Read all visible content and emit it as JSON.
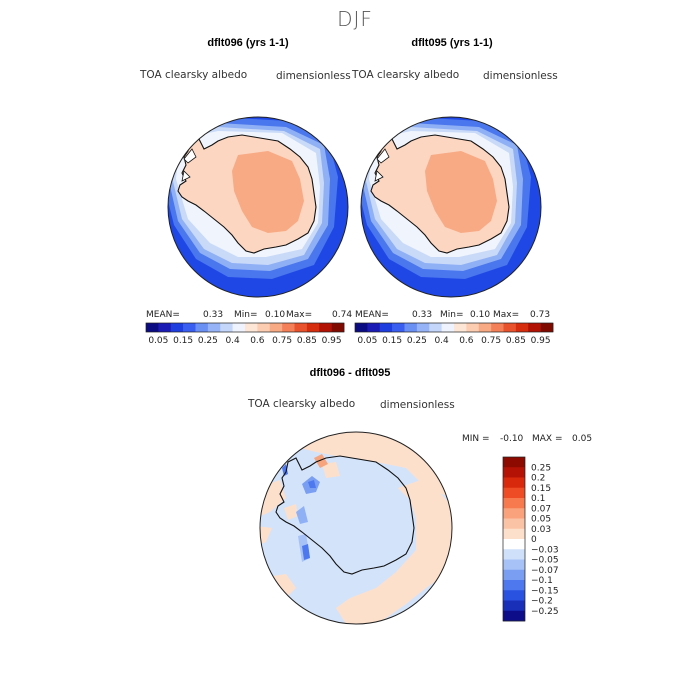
{
  "page": {
    "title": "DJF"
  },
  "colors": {
    "ocean_high": "#1f47e6",
    "ocean_mid": "#4a76ee",
    "ocean_low": "#8fb0f5",
    "ocean_pale": "#c9daf8",
    "ice_edge": "#f0f5fd",
    "land_low": "#fcd6c1",
    "land_high": "#f8aa84",
    "diff_bg": "#d3e3fa",
    "diff_pos": "#fde0cc",
    "diff_pos2": "#f5a47d",
    "diff_neg": "#4e78ee",
    "coast": "#111111"
  },
  "panels": [
    {
      "id": "dflt096",
      "title": "dflt096 (yrs 1-1)",
      "field": "TOA clearsky albedo",
      "units": "dimensionless",
      "mean_label": "MEAN=",
      "mean": "0.33",
      "min_label": "Min=",
      "min": "0.10",
      "max_label": "Max=",
      "max": "0.74"
    },
    {
      "id": "dflt095",
      "title": "dflt095 (yrs 1-1)",
      "field": "TOA clearsky albedo",
      "units": "dimensionless",
      "mean_label": "MEAN=",
      "mean": "0.33",
      "min_label": "Min=",
      "min": "0.10",
      "max_label": "Max=",
      "max": "0.73"
    }
  ],
  "diff_panel": {
    "title": "dflt096 - dflt095",
    "field": "TOA clearsky albedo",
    "units": "dimensionless",
    "min_label": "MIN =",
    "min": "-0.10",
    "max_label": "MAX =",
    "max": "0.05"
  },
  "chart_data": [
    {
      "type": "heatmap",
      "projection": "south polar stereographic",
      "title": "dflt096 (yrs 1-1)",
      "variable": "TOA clearsky albedo",
      "units": "dimensionless",
      "stats": {
        "mean": 0.33,
        "min": 0.1,
        "max": 0.74
      },
      "colorbar": {
        "tick_labels": [
          "0.05",
          "0.15",
          "0.25",
          "0.4",
          "0.6",
          "0.75",
          "0.85",
          "0.95"
        ],
        "colors": [
          "#0b0b82",
          "#1a1ab4",
          "#1f3ee0",
          "#3a5ef0",
          "#6b90f4",
          "#97b3f7",
          "#c4d6fa",
          "#eef3fd",
          "#fde6d6",
          "#fccdb1",
          "#f8aa84",
          "#f38058",
          "#e8532e",
          "#d62d0f",
          "#b11204",
          "#7e0a00"
        ]
      }
    },
    {
      "type": "heatmap",
      "projection": "south polar stereographic",
      "title": "dflt095 (yrs 1-1)",
      "variable": "TOA clearsky albedo",
      "units": "dimensionless",
      "stats": {
        "mean": 0.33,
        "min": 0.1,
        "max": 0.73
      },
      "colorbar": {
        "tick_labels": [
          "0.05",
          "0.15",
          "0.25",
          "0.4",
          "0.6",
          "0.75",
          "0.85",
          "0.95"
        ],
        "colors": [
          "#0b0b82",
          "#1a1ab4",
          "#1f3ee0",
          "#3a5ef0",
          "#6b90f4",
          "#97b3f7",
          "#c4d6fa",
          "#eef3fd",
          "#fde6d6",
          "#fccdb1",
          "#f8aa84",
          "#f38058",
          "#e8532e",
          "#d62d0f",
          "#b11204",
          "#7e0a00"
        ]
      }
    },
    {
      "type": "heatmap",
      "projection": "south polar stereographic",
      "title": "dflt096 - dflt095",
      "variable": "TOA clearsky albedo",
      "units": "dimensionless",
      "stats": {
        "min": -0.1,
        "max": 0.05
      },
      "colorbar": {
        "orientation": "vertical",
        "tick_labels": [
          "0.25",
          "0.2",
          "0.15",
          "0.1",
          "0.07",
          "0.05",
          "0.03",
          "0",
          "−0.03",
          "−0.05",
          "−0.07",
          "−0.1",
          "−0.15",
          "−0.2",
          "−0.25"
        ],
        "colors": [
          "#8c0a00",
          "#b31204",
          "#d8290c",
          "#ee4c24",
          "#f67a4d",
          "#f9a27c",
          "#fbc3a5",
          "#fde0cc",
          "#ffffff",
          "#cfe0fa",
          "#a7c2f6",
          "#7a9ef2",
          "#4e78ee",
          "#2a52e0",
          "#1a2fb8",
          "#0d0d8a"
        ]
      }
    }
  ]
}
